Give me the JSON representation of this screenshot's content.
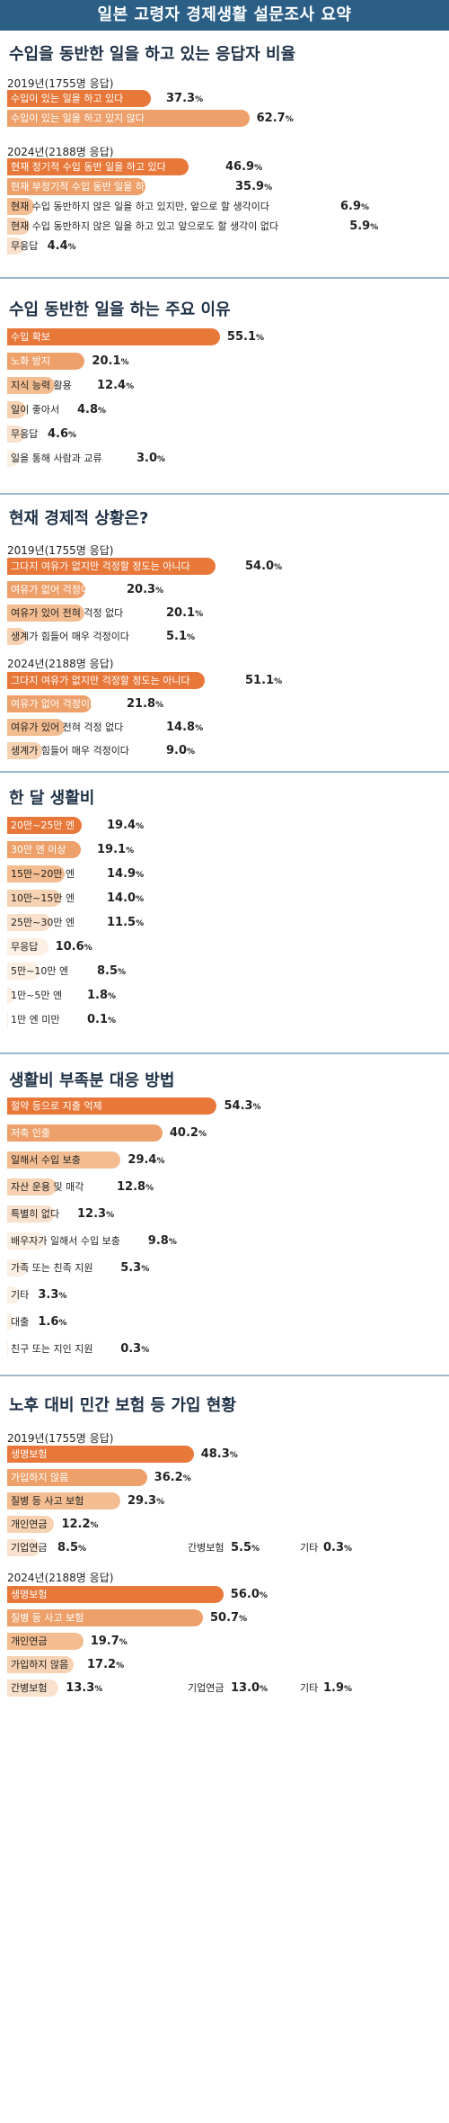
{
  "header": {
    "title": "일본 고령자 경제생활 설문조사 요약"
  },
  "chart_data": [
    {
      "type": "bar",
      "title": "수입을 동반한 일을 하고 있는 응답자 비율",
      "groups": [
        {
          "label": "2019년(1755명 응답)",
          "categories": [
            "수입이 있는 일을 하고 있다",
            "수입이 있는 일을 하고 있지 않다"
          ],
          "values": [
            37.3,
            62.7
          ]
        },
        {
          "label": "2024년(2188명 응답)",
          "categories": [
            "현재 정기적 수입 동반 일을 하고 있다",
            "현재 부정기적 수입 동반 일을 하고 있다",
            "현재 수입 동반하지 않은 일을 하고 있지만, 앞으로 할 생각이다",
            "현재 수입 동반하지 않은 일을 하고 있고 앞으로도 할 생각이 없다",
            "무응답"
          ],
          "values": [
            46.9,
            35.9,
            6.9,
            5.9,
            4.4
          ]
        }
      ]
    },
    {
      "type": "bar",
      "title": "수입 동반한 일을 하는 주요 이유",
      "groups": [
        {
          "label": "",
          "categories": [
            "수입 확보",
            "노화 방지",
            "지식 능력 활용",
            "일이 좋아서",
            "무응답",
            "일을 통해 사람과 교류"
          ],
          "values": [
            55.1,
            20.1,
            12.4,
            4.8,
            4.6,
            3.0
          ]
        }
      ]
    },
    {
      "type": "bar",
      "title": "현재 경제적 상황은?",
      "groups": [
        {
          "label": "2019년(1755명 응답)",
          "categories": [
            "그다지 여유가 없지만 걱정할 정도는 아니다",
            "여유가 없어 걱정이다",
            "여유가 있어 전혀 걱정 없다",
            "생계가 힘들어 매우 걱정이다"
          ],
          "values": [
            54.0,
            20.3,
            20.1,
            5.1
          ]
        },
        {
          "label": "2024년(2188명 응답)",
          "categories": [
            "그다지 여유가 없지만 걱정할 정도는 아니다",
            "여유가 없어 걱정이다",
            "여유가 있어 전혀 걱정 없다",
            "생계가 힘들어 매우 걱정이다"
          ],
          "values": [
            51.1,
            21.8,
            14.8,
            9.0
          ]
        }
      ]
    },
    {
      "type": "bar",
      "title": "한 달 생활비",
      "groups": [
        {
          "label": "",
          "categories": [
            "20만~25만 엔",
            "30만 엔 이상",
            "15만~20만 엔",
            "10만~15만 엔",
            "25만~30만 엔",
            "무응답",
            "5만~10만 엔",
            "1만~5만 엔",
            "1만 엔 미만"
          ],
          "values": [
            19.4,
            19.1,
            14.9,
            14.0,
            11.5,
            10.6,
            8.5,
            1.8,
            0.1
          ]
        }
      ]
    },
    {
      "type": "bar",
      "title": "생활비 부족분 대응 방법",
      "groups": [
        {
          "label": "",
          "categories": [
            "절약 등으로 지출 억제",
            "저축 인출",
            "일해서 수입 보충",
            "자산 운용 및 매각",
            "특별히 없다",
            "배우자가 일해서 수입 보충",
            "가족 또는 친족 지원",
            "기타",
            "대출",
            "친구 또는 지인 지원"
          ],
          "values": [
            54.3,
            40.2,
            29.4,
            12.8,
            12.3,
            9.8,
            5.3,
            3.3,
            1.6,
            0.3
          ]
        }
      ]
    },
    {
      "type": "bar",
      "title": "노후 대비 민간 보험 등 가입 현황",
      "groups": [
        {
          "label": "2019년(1755명 응답)",
          "categories": [
            "생명보험",
            "가입하지 않음",
            "질병 등 사고 보험",
            "개인연금",
            "기업연금",
            "간병보험",
            "기타"
          ],
          "values": [
            48.3,
            36.2,
            29.3,
            12.2,
            8.5,
            5.5,
            0.3
          ]
        },
        {
          "label": "2024년(2188명 응답)",
          "categories": [
            "생명보험",
            "질병 등 사고 보험",
            "개인연금",
            "가입하지 않음",
            "간병보험",
            "기업연금",
            "기타"
          ],
          "values": [
            56.0,
            50.7,
            19.7,
            17.2,
            13.3,
            13.0,
            1.9
          ]
        }
      ]
    }
  ]
}
